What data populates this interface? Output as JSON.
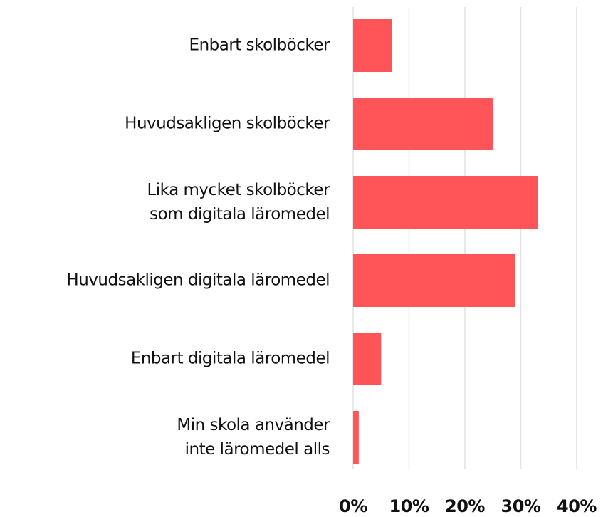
{
  "chart_data": {
    "type": "bar",
    "orientation": "horizontal",
    "categories": [
      "Enbart skolböcker",
      "Huvudsakligen skolböcker",
      "Lika mycket skolböcker\nsom digitala läromedel",
      "Huvudsakligen digitala läromedel",
      "Enbart digitala läromedel",
      "Min skola använder\ninte läromedel alls"
    ],
    "values": [
      7,
      25,
      33,
      29,
      5,
      1
    ],
    "color": "#ff5559",
    "xlim": [
      0,
      40
    ],
    "xticks": [
      {
        "value": 0,
        "label": "0%"
      },
      {
        "value": 10,
        "label": "10%"
      },
      {
        "value": 20,
        "label": "20%"
      },
      {
        "value": 30,
        "label": "30%"
      },
      {
        "value": 40,
        "label": "40%"
      }
    ],
    "grid": true
  }
}
